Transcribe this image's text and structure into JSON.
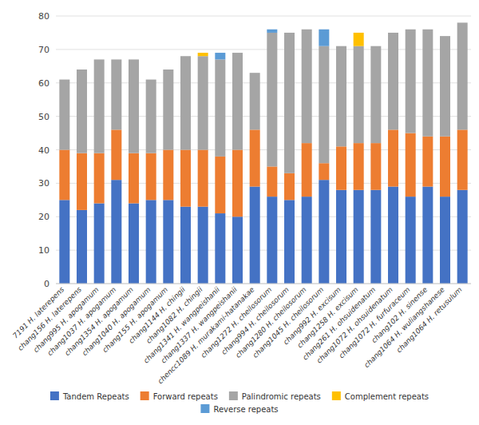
{
  "chart_data": {
    "type": "bar",
    "stacked": true,
    "grid": true,
    "legend": "bottom",
    "categories": [
      "7191 H. laterepens",
      "chang156 H. laterepens",
      "chang995 H. apogamum",
      "chang1037 H. apogamum",
      "chang1354 H. apogamum",
      "chang1040 H. apogamum",
      "chang155 H. apogamum",
      "chang1144 H. chingii",
      "chang1082 H. chingii",
      "chang1341 H. wangpeishanii",
      "chang1337 H. wangpeishanii",
      "chencc1089 H. murakami-hatanakae",
      "chang1272 H. cheilosorum",
      "chang994 H. cheilosorum",
      "chang1280 H. cheilosorum",
      "chang1045 H. cheilosorum",
      "chang992 H. excisum",
      "chang1258 H. excisum",
      "chang261 H. ohsuidenatum",
      "chang1072 H. ohsuidenatum",
      "chang1072 H. furfuraceum",
      "chang102 H. sinense",
      "chang1064 H. wuliangshanese",
      "chang1064 H. retusulum"
    ],
    "series": [
      {
        "name": "Tandem Repeats",
        "color": "#4472c4",
        "values": [
          25,
          22,
          24,
          31,
          24,
          25,
          25,
          23,
          23,
          21,
          20,
          29,
          26,
          25,
          26,
          31,
          28,
          28,
          28,
          29,
          26,
          29,
          26,
          28
        ]
      },
      {
        "name": "Forward repeats",
        "color": "#ed7d31",
        "values": [
          15,
          17,
          15,
          15,
          15,
          14,
          15,
          17,
          17,
          17,
          20,
          17,
          9,
          8,
          16,
          5,
          13,
          14,
          14,
          17,
          19,
          15,
          18,
          18
        ]
      },
      {
        "name": "Palindromic repeats",
        "color": "#a5a5a5",
        "values": [
          21,
          25,
          28,
          21,
          28,
          22,
          24,
          28,
          28,
          29,
          29,
          17,
          40,
          42,
          34,
          35,
          30,
          29,
          29,
          29,
          31,
          32,
          30,
          32
        ]
      },
      {
        "name": "Complement repeats",
        "color": "#ffc000",
        "values": [
          0,
          0,
          0,
          0,
          0,
          0,
          0,
          0,
          1,
          0,
          0,
          0,
          0,
          0,
          0,
          0,
          0,
          4,
          0,
          0,
          0,
          0,
          0,
          0
        ]
      },
      {
        "name": "Reverse repeats",
        "color": "#5b9bd5",
        "values": [
          0,
          0,
          0,
          0,
          0,
          0,
          0,
          0,
          0,
          2,
          0,
          0,
          1,
          0,
          0,
          5,
          0,
          0,
          0,
          0,
          0,
          0,
          0,
          0
        ]
      }
    ],
    "ylim": [
      0,
      80
    ],
    "yticks": [
      0,
      10,
      20,
      30,
      40,
      50,
      60,
      70,
      80
    ]
  }
}
